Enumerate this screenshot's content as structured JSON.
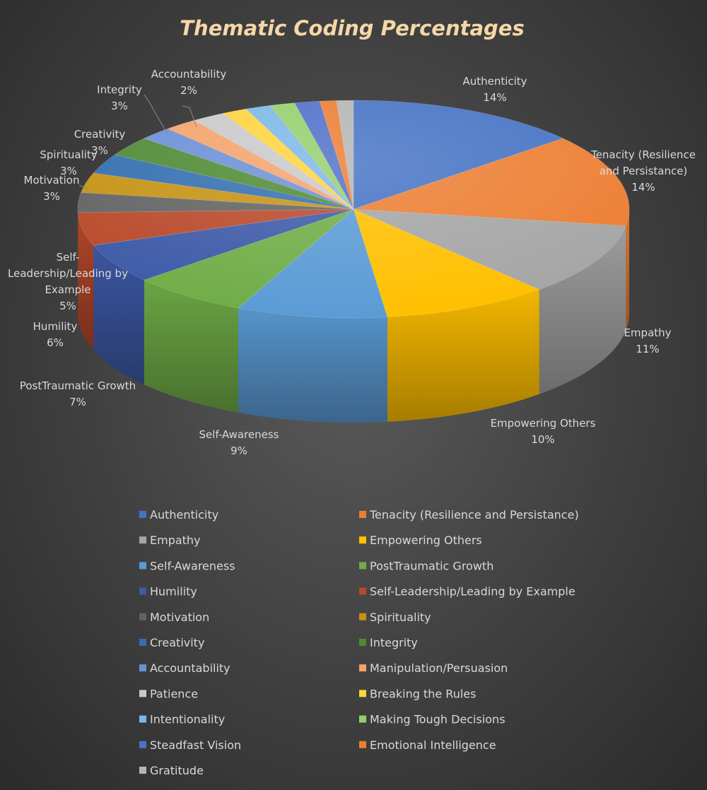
{
  "chart_data": {
    "type": "pie",
    "variant": "3d-exploded-none",
    "title": "Thematic Coding Percentages",
    "title_color": "#f6d7a7",
    "legend_position": "bottom",
    "unit": "%",
    "slices": [
      {
        "label": "Authenticity",
        "legend": "Authenticity",
        "value": 14,
        "value_label": "14%",
        "color": "#4472c4",
        "labeled": true
      },
      {
        "label": "Tenacity (Resilience and Persistance)",
        "legend": "Tenacity (Resilience and Persistance)",
        "value": 14,
        "value_label": "14%",
        "color": "#ed7d31",
        "labeled": true
      },
      {
        "label": "Empathy",
        "legend": "Empathy",
        "value": 11,
        "value_label": "11%",
        "color": "#a5a5a5",
        "labeled": true
      },
      {
        "label": "Empowering Others",
        "legend": "Empowering Others",
        "value": 10,
        "value_label": "10%",
        "color": "#ffc000",
        "labeled": true
      },
      {
        "label": "Self-Awareness",
        "legend": "Self-Awareness",
        "value": 9,
        "value_label": "9%",
        "color": "#5b9bd5",
        "labeled": true
      },
      {
        "label": "PostTraumatic Growth",
        "legend": "PostTraumatic Growth",
        "value": 7,
        "value_label": "7%",
        "color": "#70ad47",
        "labeled": true
      },
      {
        "label": "Humility",
        "legend": "Humility",
        "value": 6,
        "value_label": "6%",
        "color": "#3e5aa8",
        "labeled": true
      },
      {
        "label": "Self-Leadership/Leading by Example",
        "legend": "Self-Leadership/Leading by Example",
        "value": 5,
        "value_label": "5%",
        "color": "#b9492a",
        "labeled": true
      },
      {
        "label": "Motivation",
        "legend": "Motivation",
        "value": 3,
        "value_label": "3%",
        "color": "#636363",
        "labeled": true
      },
      {
        "label": "Spirituality",
        "legend": "Spirituality",
        "value": 3,
        "value_label": "3%",
        "color": "#c69214",
        "labeled": true
      },
      {
        "label": "Creativity",
        "legend": "Creativity",
        "value": 3,
        "value_label": "3%",
        "color": "#336fb0",
        "labeled": true
      },
      {
        "label": "Integrity",
        "legend": "Integrity",
        "value": 3,
        "value_label": "3%",
        "color": "#4f8a35",
        "labeled": true
      },
      {
        "label": "Accountability",
        "legend": "Accountability",
        "value": 2,
        "value_label": "2%",
        "color": "#6b8fd6",
        "labeled": true
      },
      {
        "label": "Manipulation/Persuasion",
        "legend": "Manipulation/Persuasion",
        "value": 2,
        "value_label": "",
        "color": "#f4a26b",
        "labeled": false
      },
      {
        "label": "Patience",
        "legend": "Patience",
        "value": 2,
        "value_label": "",
        "color": "#c9c9c9",
        "labeled": false
      },
      {
        "label": "Breaking the Rules",
        "legend": "Breaking the Rules",
        "value": 1.5,
        "value_label": "",
        "color": "#ffd33d",
        "labeled": false
      },
      {
        "label": "Intentionality",
        "legend": "Intentionality",
        "value": 1.5,
        "value_label": "",
        "color": "#7cb7e8",
        "labeled": false
      },
      {
        "label": "Making Tough Decisions",
        "legend": "Making Tough Decisions",
        "value": 1.5,
        "value_label": "",
        "color": "#94cf6c",
        "labeled": false
      },
      {
        "label": "Steadfast Vision",
        "legend": "Steadfast Vision",
        "value": 1.5,
        "value_label": "",
        "color": "#4f6fc8",
        "labeled": false
      },
      {
        "label": "Emotional Intelligence",
        "legend": "Emotional Intelligence",
        "value": 1,
        "value_label": "",
        "color": "#ed7d31",
        "labeled": false
      },
      {
        "label": "Gratitude",
        "legend": "Gratitude",
        "value": 1,
        "value_label": "",
        "color": "#b4b4b4",
        "labeled": false
      }
    ]
  }
}
